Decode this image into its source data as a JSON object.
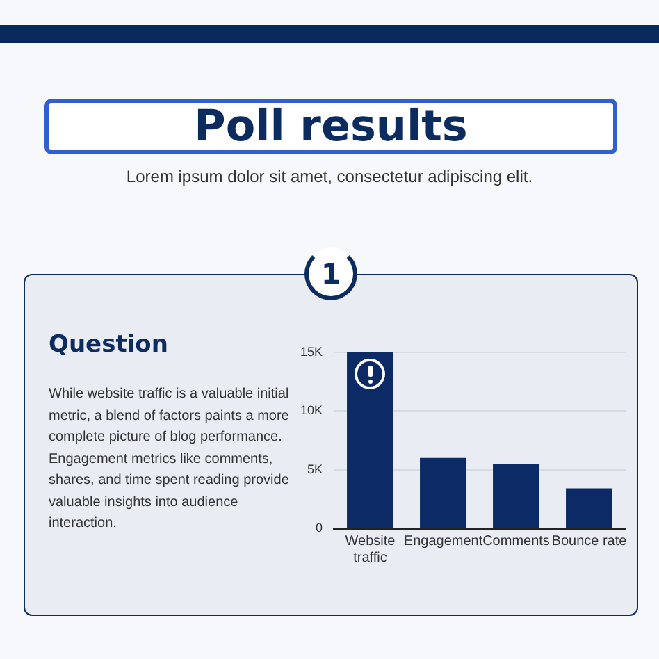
{
  "chart_data": {
    "type": "bar",
    "title": "Poll results",
    "subtitle": "Lorem ipsum dolor sit amet, consectetur adipiscing elit.",
    "annotations": [
      "1",
      "Question",
      "While website traffic is a valuable initial metric, a blend of factors paints a more complete picture of blog performance.  Engagement metrics like comments, shares, and time spent reading provide valuable insights into audience interaction."
    ],
    "categories": [
      "Website traffic",
      "Engagement",
      "Comments",
      "Bounce rate"
    ],
    "values": [
      15000,
      6000,
      5500,
      3400
    ],
    "color": "#0c2b66",
    "ylim": [
      0,
      15000
    ],
    "yticks": [
      0,
      {
        "value": 5000,
        "label": "5K"
      },
      {
        "value": 10000,
        "label": "10K"
      },
      {
        "value": 15000,
        "label": "15K"
      }
    ],
    "grid": "y",
    "legend": false
  }
}
